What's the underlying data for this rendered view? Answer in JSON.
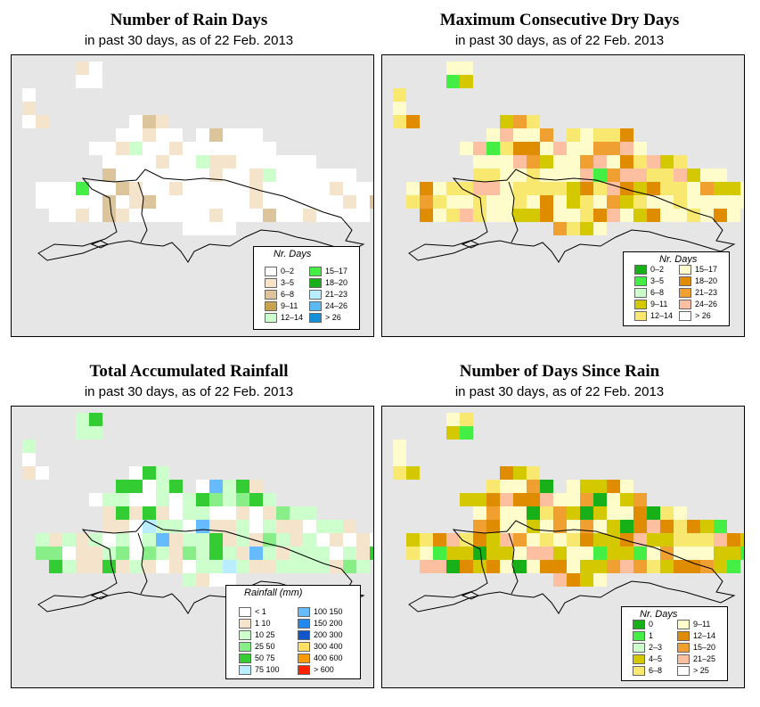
{
  "panels": [
    {
      "title": "Number of Rain Days",
      "subtitle": "in past 30 days, as of  22 Feb. 2013",
      "legend_title": "Nr. Days",
      "legend": [
        {
          "label": "0–2",
          "color": "#ffffff"
        },
        {
          "label": "3–5",
          "color": "#f5e4cc"
        },
        {
          "label": "6–8",
          "color": "#dcc59b"
        },
        {
          "label": "9–11",
          "color": "#c8a24e"
        },
        {
          "label": "12–14",
          "color": "#ccffcc"
        },
        {
          "label": "15–17",
          "color": "#44ee44"
        },
        {
          "label": "18–20",
          "color": "#18b018"
        },
        {
          "label": "21–23",
          "color": "#b8eeff"
        },
        {
          "label": "24–26",
          "color": "#5cb8f0"
        },
        {
          "label": "> 26",
          "color": "#1490d8"
        }
      ]
    },
    {
      "title": "Maximum Consecutive Dry Days",
      "subtitle": "in past 30 days, as of  22 Feb. 2013",
      "legend_title": "Nr. Days",
      "legend": [
        {
          "label": "0–2",
          "color": "#18b018"
        },
        {
          "label": "3–5",
          "color": "#44ee44"
        },
        {
          "label": "6–8",
          "color": "#ccffcc"
        },
        {
          "label": "9–11",
          "color": "#d4c800"
        },
        {
          "label": "12–14",
          "color": "#f8e870"
        },
        {
          "label": "15–17",
          "color": "#fffccc"
        },
        {
          "label": "18–20",
          "color": "#e08c00"
        },
        {
          "label": "21–23",
          "color": "#f0a030"
        },
        {
          "label": "24–26",
          "color": "#fcc0a0"
        },
        {
          "label": "> 26",
          "color": "#ffffff"
        }
      ]
    },
    {
      "title": "Total Accumulated Rainfall",
      "subtitle": "in past 30 days, as of  22 Feb. 2013",
      "legend_title": "Rainfall (mm)",
      "legend": [
        {
          "label": "< 1",
          "color": "#ffffff"
        },
        {
          "label": "1    10",
          "color": "#f5e4cc"
        },
        {
          "label": "10    25",
          "color": "#ccffcc"
        },
        {
          "label": "25    50",
          "color": "#88ee88"
        },
        {
          "label": "50    75",
          "color": "#33cc33"
        },
        {
          "label": "75   100",
          "color": "#b8eeff"
        },
        {
          "label": "100   150",
          "color": "#66bbff"
        },
        {
          "label": "150   200",
          "color": "#2288ee"
        },
        {
          "label": "200   300",
          "color": "#1155cc"
        },
        {
          "label": "300   400",
          "color": "#ffe066"
        },
        {
          "label": "400   600",
          "color": "#ff9900"
        },
        {
          "label": "> 600",
          "color": "#ff2200"
        }
      ]
    },
    {
      "title": "Number of Days Since Rain",
      "subtitle": "in past 30 days, as of  22 Feb. 2013",
      "legend_title": "Nr. Days",
      "legend": [
        {
          "label": "0",
          "color": "#18b018"
        },
        {
          "label": "1",
          "color": "#44ee44"
        },
        {
          "label": "2–3",
          "color": "#ccffcc"
        },
        {
          "label": "4–5",
          "color": "#d4c800"
        },
        {
          "label": "6–8",
          "color": "#f8e870"
        },
        {
          "label": "9–11",
          "color": "#fffccc"
        },
        {
          "label": "12–14",
          "color": "#e08c00"
        },
        {
          "label": "15–20",
          "color": "#f0a030"
        },
        {
          "label": "21–25",
          "color": "#fcc0a0"
        },
        {
          "label": "> 25",
          "color": "#ffffff"
        }
      ]
    }
  ]
}
